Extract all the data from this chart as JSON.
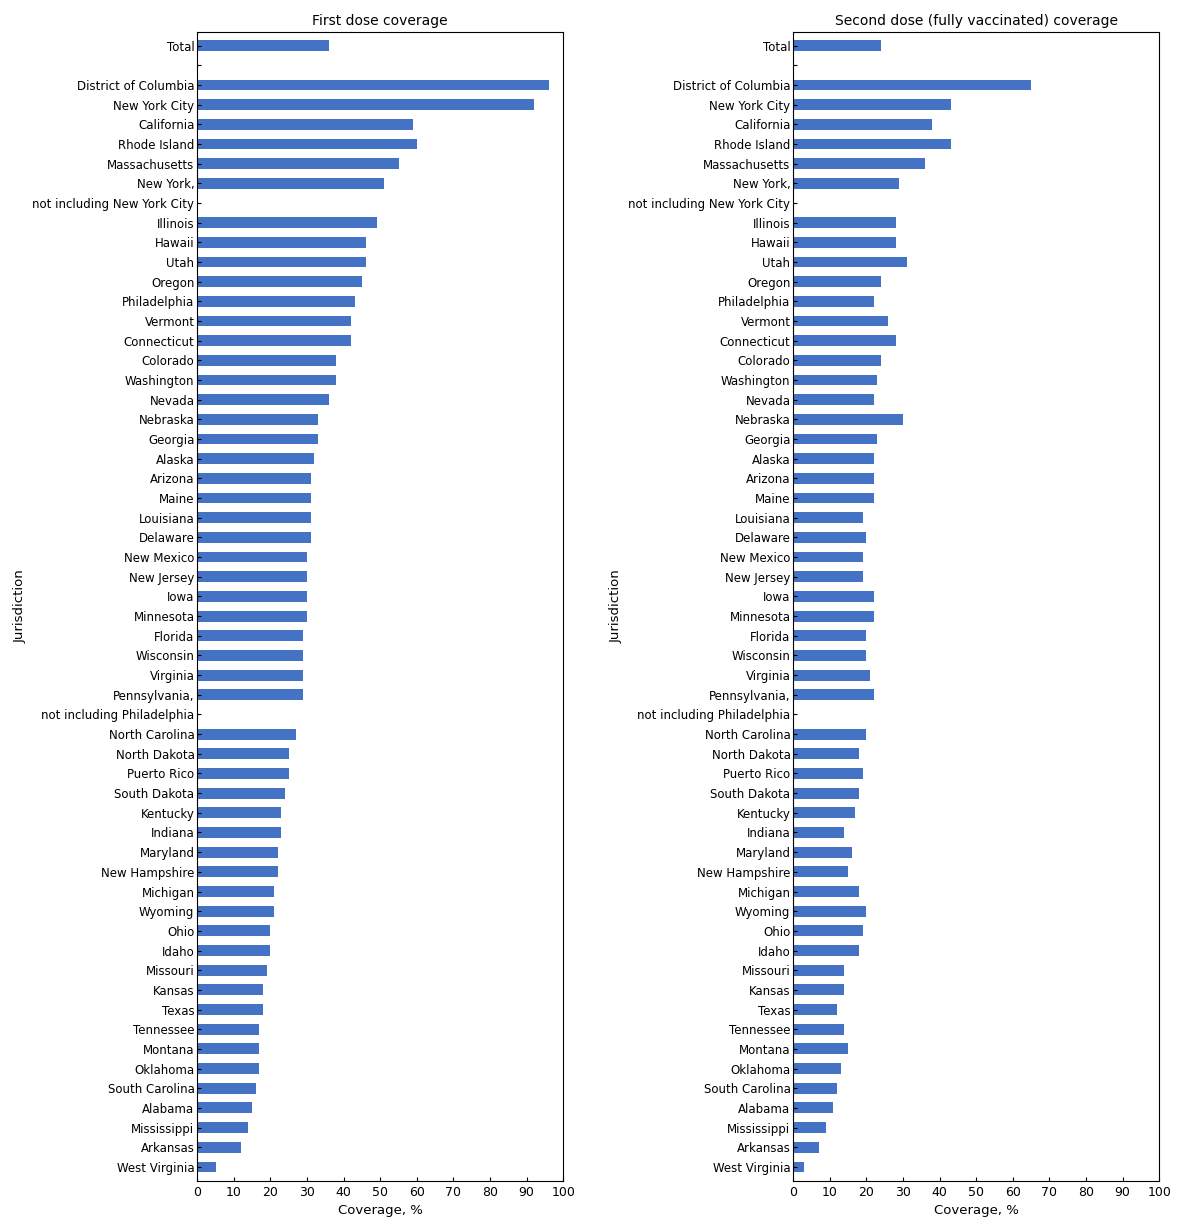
{
  "jurisdictions_display": [
    "Total",
    "",
    "District of Columbia",
    "New York City",
    "California",
    "Rhode Island",
    "Massachusetts",
    "New York,",
    "not including New York City",
    "Illinois",
    "Hawaii",
    "Utah",
    "Oregon",
    "Philadelphia",
    "Vermont",
    "Connecticut",
    "Colorado",
    "Washington",
    "Nevada",
    "Nebraska",
    "Georgia",
    "Alaska",
    "Arizona",
    "Maine",
    "Louisiana",
    "Delaware",
    "New Mexico",
    "New Jersey",
    "Iowa",
    "Minnesota",
    "Florida",
    "Wisconsin",
    "Virginia",
    "Pennsylvania,",
    "not including Philadelphia",
    "North Carolina",
    "North Dakota",
    "Puerto Rico",
    "South Dakota",
    "Kentucky",
    "Indiana",
    "Maryland",
    "New Hampshire",
    "Michigan",
    "Wyoming",
    "Ohio",
    "Idaho",
    "Missouri",
    "Kansas",
    "Texas",
    "Tennessee",
    "Montana",
    "Oklahoma",
    "South Carolina",
    "Alabama",
    "Mississippi",
    "Arkansas",
    "West Virginia"
  ],
  "dose1_map": {
    "0": 36,
    "2": 96,
    "3": 92,
    "4": 59,
    "5": 60,
    "6": 55,
    "7": 51,
    "9": 49,
    "10": 46,
    "11": 46,
    "12": 45,
    "13": 43,
    "14": 42,
    "15": 42,
    "16": 38,
    "17": 38,
    "18": 36,
    "19": 33,
    "20": 33,
    "21": 32,
    "22": 31,
    "23": 31,
    "24": 31,
    "25": 31,
    "26": 30,
    "27": 30,
    "28": 30,
    "29": 30,
    "30": 29,
    "31": 29,
    "32": 29,
    "33": 29,
    "35": 27,
    "36": 25,
    "37": 25,
    "38": 24,
    "39": 23,
    "40": 23,
    "41": 22,
    "42": 22,
    "43": 21,
    "44": 21,
    "45": 20,
    "46": 20,
    "47": 19,
    "48": 18,
    "49": 18,
    "50": 17,
    "51": 17,
    "52": 17,
    "53": 16,
    "54": 15,
    "55": 14,
    "56": 12,
    "57": 5
  },
  "dose2_map": {
    "0": 24,
    "2": 65,
    "3": 43,
    "4": 38,
    "5": 43,
    "6": 36,
    "7": 29,
    "9": 28,
    "10": 28,
    "11": 31,
    "12": 24,
    "13": 22,
    "14": 26,
    "15": 28,
    "16": 24,
    "17": 23,
    "18": 22,
    "19": 30,
    "20": 23,
    "21": 22,
    "22": 22,
    "23": 22,
    "24": 19,
    "25": 20,
    "26": 19,
    "27": 19,
    "28": 22,
    "29": 22,
    "30": 20,
    "31": 20,
    "32": 21,
    "33": 22,
    "35": 20,
    "36": 18,
    "37": 19,
    "38": 18,
    "39": 17,
    "40": 14,
    "41": 16,
    "42": 15,
    "43": 18,
    "44": 20,
    "45": 19,
    "46": 18,
    "47": 14,
    "48": 14,
    "49": 12,
    "50": 14,
    "51": 15,
    "52": 13,
    "53": 12,
    "54": 11,
    "55": 9,
    "56": 7,
    "57": 3
  },
  "bar_color": "#4472C4",
  "title1": "First dose coverage",
  "title2": "Second dose (fully vaccinated) coverage",
  "xlabel": "Coverage, %",
  "ylabel": "Jurisdiction",
  "xlim": [
    0,
    100
  ],
  "xticks": [
    0,
    10,
    20,
    30,
    40,
    50,
    60,
    70,
    80,
    90,
    100
  ],
  "bar_height": 0.55
}
